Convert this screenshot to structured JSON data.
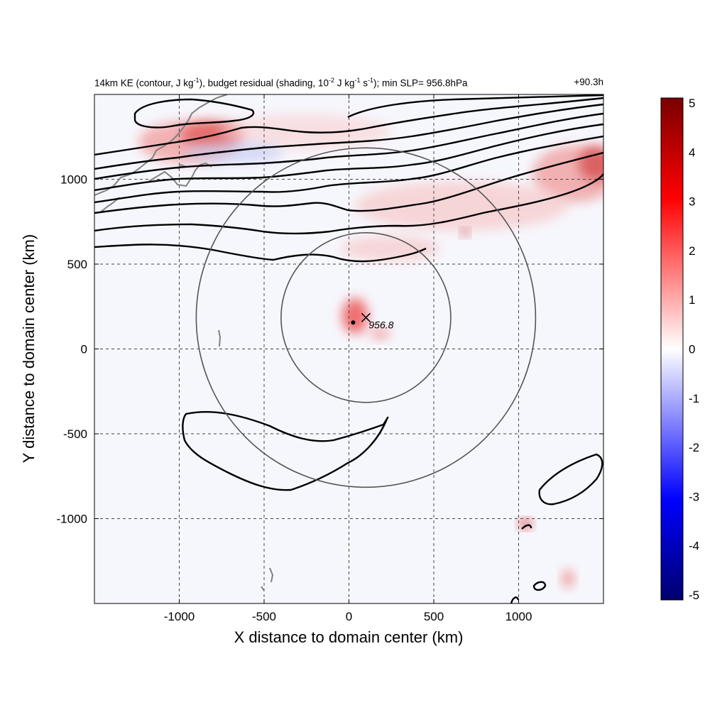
{
  "title": {
    "left_parts": [
      "14km KE (contour, J kg",
      "-1",
      "), budget residual (shading, 10",
      "-2",
      " J kg",
      "-1",
      " s",
      "-1",
      "); min SLP= 956.8hPa"
    ],
    "right": "+90.3h"
  },
  "axes": {
    "xlabel": "X distance to domain center (km)",
    "ylabel": "Y distance to domain center (km)",
    "x_range": [
      -1500,
      1500
    ],
    "y_range": [
      -1500,
      1500
    ],
    "x_ticks": [
      -1000,
      -500,
      0,
      500,
      1000
    ],
    "x_tick_labels": [
      "-1000",
      "-500",
      "0",
      "500",
      "1000"
    ],
    "y_ticks": [
      -1000,
      -500,
      0,
      500,
      1000
    ],
    "y_tick_labels": [
      "-1000",
      "-500",
      "0",
      "500",
      "1000"
    ]
  },
  "colorbar": {
    "min": -5,
    "max": 5,
    "ticks": [
      "5",
      "4",
      "3",
      "2",
      "1",
      "0",
      "-1",
      "-2",
      "-3",
      "-4",
      "-5"
    ],
    "colors": {
      "max": "#7a0000",
      "high": "#ff0000",
      "zero": "#ffffff",
      "low": "#0000ff",
      "min": "#00006e"
    }
  },
  "storm": {
    "center_x": 100,
    "center_y": 185,
    "min_slp_label": "956.8",
    "inner_circle_radius_km": 500,
    "outer_circle_radius_km": 1000
  },
  "colors": {
    "contour": "#000000",
    "coastline": "#808080",
    "circle": "#555555",
    "grid": "#444444"
  }
}
